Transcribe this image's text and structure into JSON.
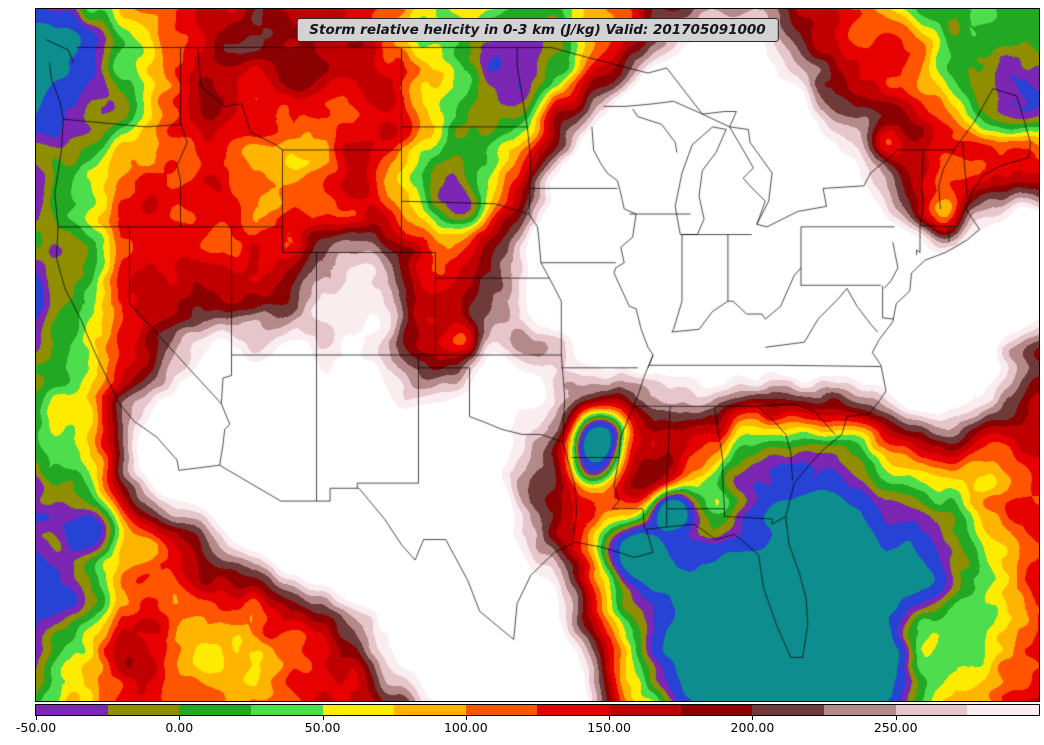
{
  "figure": {
    "background": "#ffffff",
    "frame_color": "#000000"
  },
  "title": {
    "text": "Storm relative helicity in 0-3 km (J/kg) Valid: 201705091000",
    "box_background": "#d3d3d3"
  },
  "colorbar": {
    "orientation": "horizontal",
    "min": -50,
    "max": 300,
    "step": 25,
    "tick_values": [
      -50,
      0,
      50,
      100,
      150,
      200,
      250
    ],
    "tick_labels": [
      "-50.00",
      "0.00",
      "50.00",
      "100.00",
      "150.00",
      "200.00",
      "250.00"
    ],
    "segment_colors": [
      "#7c26b4",
      "#8e8e00",
      "#22a822",
      "#4ddd4d",
      "#ffeb00",
      "#ffb400",
      "#ff5400",
      "#e60000",
      "#c00000",
      "#8b0000",
      "#6e3a3a",
      "#b38989",
      "#e7c6cb",
      "#f9edef"
    ],
    "over_color": "#ffffff",
    "below_scale_colors": [
      "#2743d6",
      "#0d8d8d"
    ]
  },
  "chart_data": {
    "type": "heatmap",
    "variable": "Storm relative helicity in 0-3 km",
    "units": "J/kg",
    "valid_time": "201705091000",
    "title": "Storm relative helicity in 0-3 km (J/kg) Valid: 201705091000",
    "region": "Contiguous United States with state boundaries",
    "contour_levels": [
      -50,
      -25,
      0,
      25,
      50,
      75,
      100,
      125,
      150,
      175,
      200,
      225,
      250,
      275,
      300
    ],
    "palette": [
      "#7c26b4",
      "#8e8e00",
      "#22a822",
      "#4ddd4d",
      "#ffeb00",
      "#ffb400",
      "#ff5400",
      "#e60000",
      "#c00000",
      "#8b0000",
      "#6e3a3a",
      "#b38989",
      "#e7c6cb",
      "#f9edef"
    ],
    "colorbar_tick_labels": [
      "-50.00",
      "0.00",
      "50.00",
      "100.00",
      "150.00",
      "200.00",
      "250.00"
    ],
    "legend_position": "bottom"
  }
}
